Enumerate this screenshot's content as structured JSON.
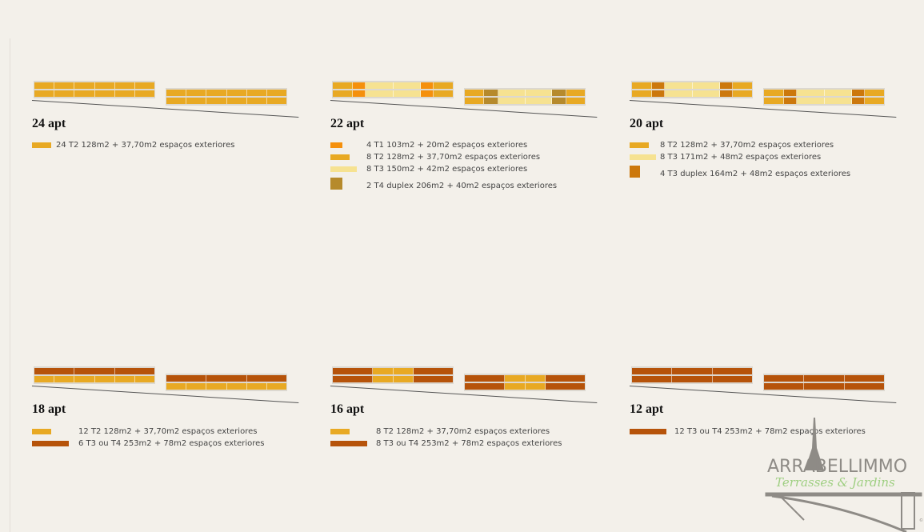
{
  "colors": {
    "T1": "#f5900c",
    "T2": "#e8a923",
    "T3": "#f6e291",
    "D22": "#b68a2c",
    "D20": "#cc780c",
    "T34": "#b6530a"
  },
  "panels": [
    {
      "title": "24 apt",
      "a": [
        [
          "T2",
          "T2",
          "T2",
          "T2",
          "T2",
          "T2"
        ],
        [
          "T2",
          "T2",
          "T2",
          "T2",
          "T2",
          "T2"
        ]
      ],
      "b": [
        [
          "T2",
          "T2",
          "T2",
          "T2",
          "T2",
          "T2"
        ],
        [
          "T2",
          "T2",
          "T2",
          "T2",
          "T2",
          "T2"
        ]
      ],
      "legend": [
        {
          "type": "T2",
          "text": "24 T2  128m2 + 37,70m2 espaços exteriores"
        }
      ]
    },
    {
      "title": "22 apt",
      "a": [
        [
          "T2",
          "T1",
          "T3",
          "T3",
          "T1",
          "T2"
        ],
        [
          "T2",
          "T1",
          "T3",
          "T3",
          "T1",
          "T2"
        ]
      ],
      "b": [
        [
          "T2",
          "D22",
          "T3",
          "T3",
          "D22",
          "T2"
        ],
        [
          "T2",
          "D22",
          "T3",
          "T3",
          "D22",
          "T2"
        ]
      ],
      "legend": [
        {
          "type": "T1",
          "text": "4 T1  103m2 + 20m2 espaços exteriores"
        },
        {
          "type": "T2",
          "text": "8 T2  128m2 + 37,70m2 espaços exteriores"
        },
        {
          "type": "T3",
          "text": "8 T3  150m2 + 42m2 espaços exteriores"
        },
        {
          "type": "D22",
          "text": "2 T4 duplex  206m2 + 40m2 espaços exteriores"
        }
      ]
    },
    {
      "title": "20 apt",
      "a": [
        [
          "T2",
          "D20",
          "T3",
          "T3",
          "D20",
          "T2"
        ],
        [
          "T2",
          "D20",
          "T3",
          "T3",
          "D20",
          "T2"
        ]
      ],
      "b": [
        [
          "T2",
          "D20",
          "T3",
          "T3",
          "D20",
          "T2"
        ],
        [
          "T2",
          "D20",
          "T3",
          "T3",
          "D20",
          "T2"
        ]
      ],
      "legend": [
        {
          "type": "T2",
          "text": "8 T2  128m2 + 37,70m2 espaços exteriores"
        },
        {
          "type": "T3",
          "text": "8 T3  171m2 + 48m2 espaços exteriores"
        },
        {
          "type": "D20",
          "text": "4 T3 duplex  164m2 + 48m2 espaços exteriores"
        }
      ]
    },
    {
      "title": "18 apt",
      "a": [
        [
          "T34",
          "T34",
          "T34"
        ],
        [
          "T2",
          "T2",
          "T2",
          "T2",
          "T2",
          "T2"
        ]
      ],
      "b": [
        [
          "T34",
          "T34",
          "T34"
        ],
        [
          "T2",
          "T2",
          "T2",
          "T2",
          "T2",
          "T2"
        ]
      ],
      "legend": [
        {
          "type": "T2",
          "text": "12 T2  128m2 + 37,70m2 espaços exteriores"
        },
        {
          "type": "T34",
          "text": "6 T3 ou T4  253m2 + 78m2 espaços exteriores"
        }
      ]
    },
    {
      "title": "16 apt",
      "a": [
        [
          "T34",
          "T2",
          "T2",
          "T34"
        ],
        [
          "T34",
          "T2",
          "T2",
          "T34"
        ]
      ],
      "b": [
        [
          "T34",
          "T2",
          "T2",
          "T34"
        ],
        [
          "T34",
          "T2",
          "T2",
          "T34"
        ]
      ],
      "legend": [
        {
          "type": "T2",
          "text": "8 T2  128m2 + 37,70m2 espaços exteriores"
        },
        {
          "type": "T34",
          "text": "8 T3 ou T4 253m2 + 78m2 espaços exteriores"
        }
      ]
    },
    {
      "title": "12 apt",
      "a": [
        [
          "T34",
          "T34",
          "T34"
        ],
        [
          "T34",
          "T34",
          "T34"
        ]
      ],
      "b": [
        [
          "T34",
          "T34",
          "T34"
        ],
        [
          "T34",
          "T34",
          "T34"
        ]
      ],
      "legend": [
        {
          "type": "T34",
          "text": "12 T3 ou T4 253m2 + 78m2 espaços exteriores"
        }
      ]
    }
  ],
  "logo": {
    "name": "ARRABELLIMMO",
    "tagline": "Terrasses & Jardins",
    "copyright": "©"
  }
}
